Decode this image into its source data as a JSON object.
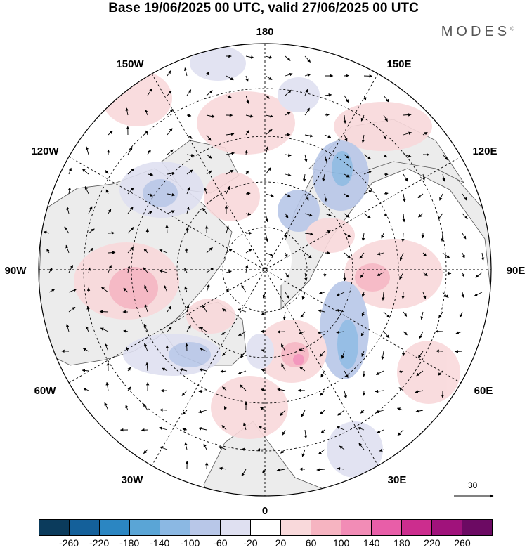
{
  "title": "Base 19/06/2025 00 UTC, valid 27/06/2025 00 UTC",
  "brand": "MODES",
  "brand_mark": "©",
  "map": {
    "projection": "north-polar-stereographic",
    "lon_labels": [
      "180",
      "150E",
      "120E",
      "90E",
      "60E",
      "30E",
      "0",
      "30W",
      "60W",
      "90W",
      "120W",
      "150W"
    ],
    "ocean_color": "#ffffff",
    "land_color": "#efefef",
    "graticule": "dashed",
    "wind_vectors": true
  },
  "vector_scale": {
    "label": "30"
  },
  "colorbar": {
    "colors": [
      "#0b3b5c",
      "#14609a",
      "#2b86c2",
      "#5aa5d6",
      "#8bb8e3",
      "#b8c7e8",
      "#dfe0f1",
      "#ffffff",
      "#f9d9db",
      "#f6b4c1",
      "#f28cb6",
      "#e85ea8",
      "#cc2d8e",
      "#a0127b",
      "#6c0a63"
    ],
    "tick_labels": [
      "-260",
      "-220",
      "-180",
      "-140",
      "-100",
      "-60",
      "-20",
      "20",
      "60",
      "100",
      "140",
      "180",
      "220",
      "260"
    ]
  }
}
